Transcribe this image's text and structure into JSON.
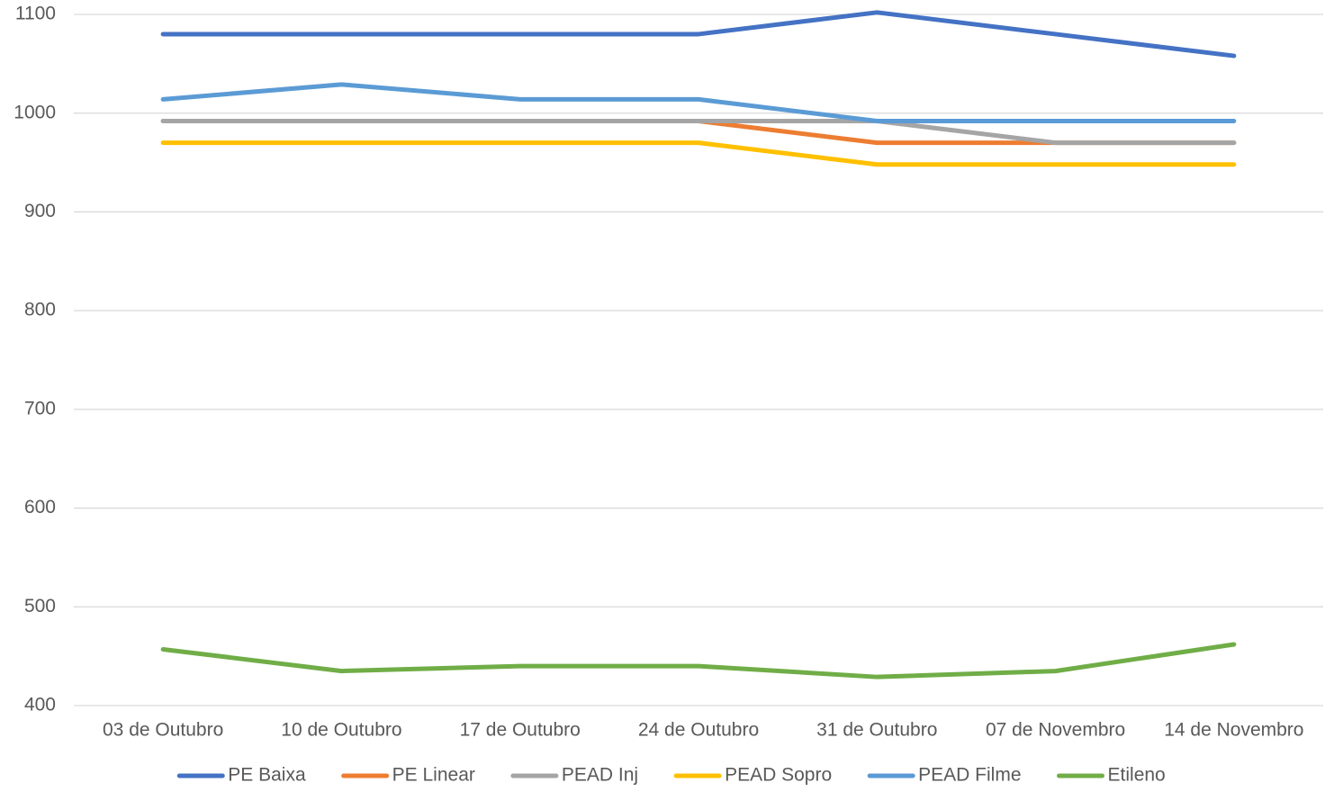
{
  "chart_data": {
    "type": "line",
    "categories": [
      "03 de Outubro",
      "10 de Outubro",
      "17 de Outubro",
      "24 de Outubro",
      "31 de Outubro",
      "07 de Novembro",
      "14 de Novembro"
    ],
    "series": [
      {
        "name": "PE Baixa",
        "color": "#4472c4",
        "values": [
          1080,
          1080,
          1080,
          1080,
          1102,
          1080,
          1058
        ]
      },
      {
        "name": "PE Linear",
        "color": "#ed7d31",
        "values": [
          992,
          992,
          992,
          992,
          970,
          970,
          970
        ]
      },
      {
        "name": "PEAD Inj",
        "color": "#a5a5a5",
        "values": [
          992,
          992,
          992,
          992,
          992,
          970,
          970
        ]
      },
      {
        "name": "PEAD Sopro",
        "color": "#ffc000",
        "values": [
          970,
          970,
          970,
          970,
          948,
          948,
          948
        ]
      },
      {
        "name": "PEAD Filme",
        "color": "#5b9bd5",
        "values": [
          1014,
          1029,
          1014,
          1014,
          992,
          992,
          992
        ]
      },
      {
        "name": "Etileno",
        "color": "#70ad47",
        "values": [
          457,
          435,
          440,
          440,
          429,
          435,
          462
        ]
      }
    ],
    "ylim": [
      400,
      1100
    ],
    "yticks": [
      400,
      500,
      600,
      700,
      800,
      900,
      1000,
      1100
    ],
    "grid": true,
    "legend": "bottom"
  }
}
